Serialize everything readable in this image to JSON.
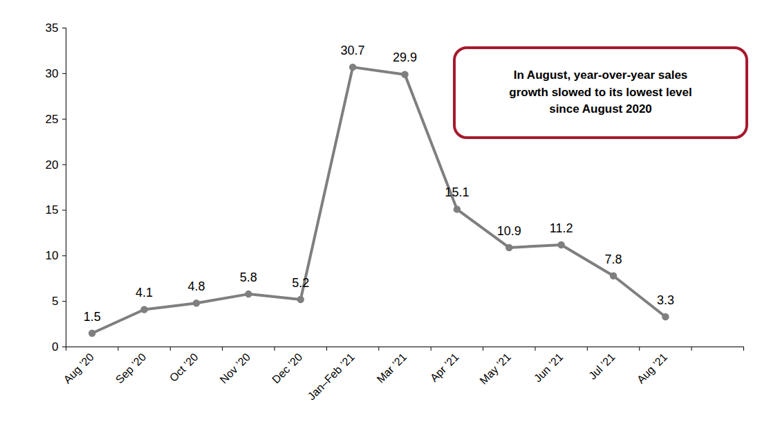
{
  "chart_data": {
    "type": "line",
    "categories": [
      "Aug ’20",
      "Sep ’20",
      "Oct ’20",
      "Nov ’20",
      "Dec ’20",
      "Jan–Feb ’21",
      "Mar ’21",
      "Apr ’21",
      "May ’21",
      "Jun ’21",
      "Jul ’21",
      "Aug ’21"
    ],
    "values": [
      1.5,
      4.1,
      4.8,
      5.8,
      5.2,
      30.7,
      29.9,
      15.1,
      10.9,
      11.2,
      7.8,
      3.3
    ],
    "color": "#7f7f7f",
    "marker": "circle",
    "ylim": [
      0,
      35
    ],
    "yticks": [
      0,
      5,
      10,
      15,
      20,
      25,
      30,
      35
    ],
    "data_labels": true,
    "grid": false,
    "annotation": "In August, year-over-year sales\ngrowth slowed to its lowest level\nsince August 2020"
  }
}
